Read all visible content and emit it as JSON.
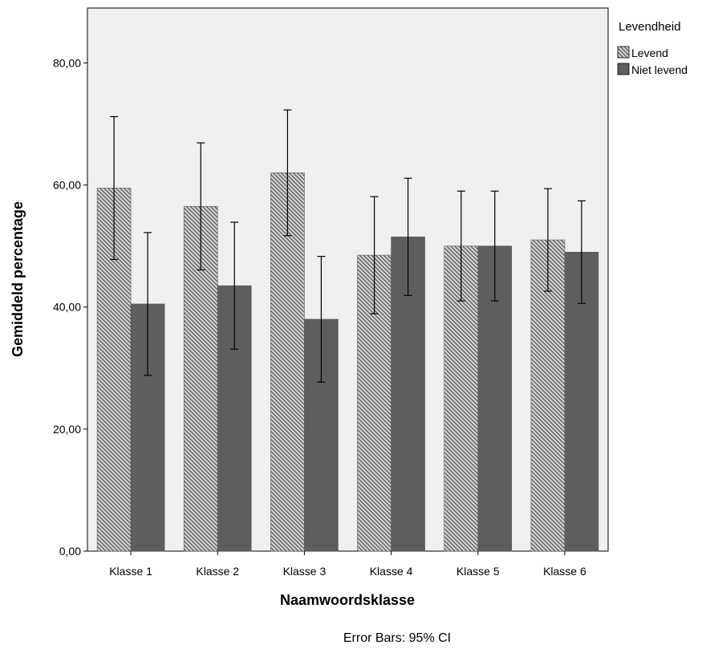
{
  "chart_data": {
    "type": "bar",
    "categories": [
      "Klasse 1",
      "Klasse 2",
      "Klasse 3",
      "Klasse 4",
      "Klasse 5",
      "Klasse 6"
    ],
    "series": [
      {
        "name": "Levend",
        "values": [
          59.5,
          56.5,
          62.0,
          48.5,
          50.0,
          51.0
        ],
        "ci_low": [
          47.8,
          46.1,
          51.7,
          38.9,
          41.0,
          42.6
        ],
        "ci_high": [
          71.2,
          66.9,
          72.3,
          58.1,
          59.0,
          59.4
        ],
        "pattern": "hatched"
      },
      {
        "name": "Niet levend",
        "values": [
          40.5,
          43.5,
          38.0,
          51.5,
          50.0,
          49.0
        ],
        "ci_low": [
          28.8,
          33.1,
          27.7,
          41.9,
          41.0,
          40.6
        ],
        "ci_high": [
          52.2,
          53.9,
          48.3,
          61.1,
          59.0,
          57.4
        ],
        "pattern": "solid"
      }
    ],
    "xlabel": "Naamwoordsklasse",
    "ylabel": "Gemiddeld percentage",
    "yticks": [
      "0,00",
      "20,00",
      "40,00",
      "60,00",
      "80,00"
    ],
    "ylim": [
      0,
      89
    ],
    "legend": {
      "title": "Levendheid",
      "placement": "top-right-outside"
    },
    "footnote": "Error Bars: 95% CI",
    "grid": false,
    "colors": {
      "background": "#f0f0f0",
      "solid_bar": "#5e5e5e",
      "hatch_bar": "#c9c9c9",
      "hatch_line": "#555555"
    }
  }
}
